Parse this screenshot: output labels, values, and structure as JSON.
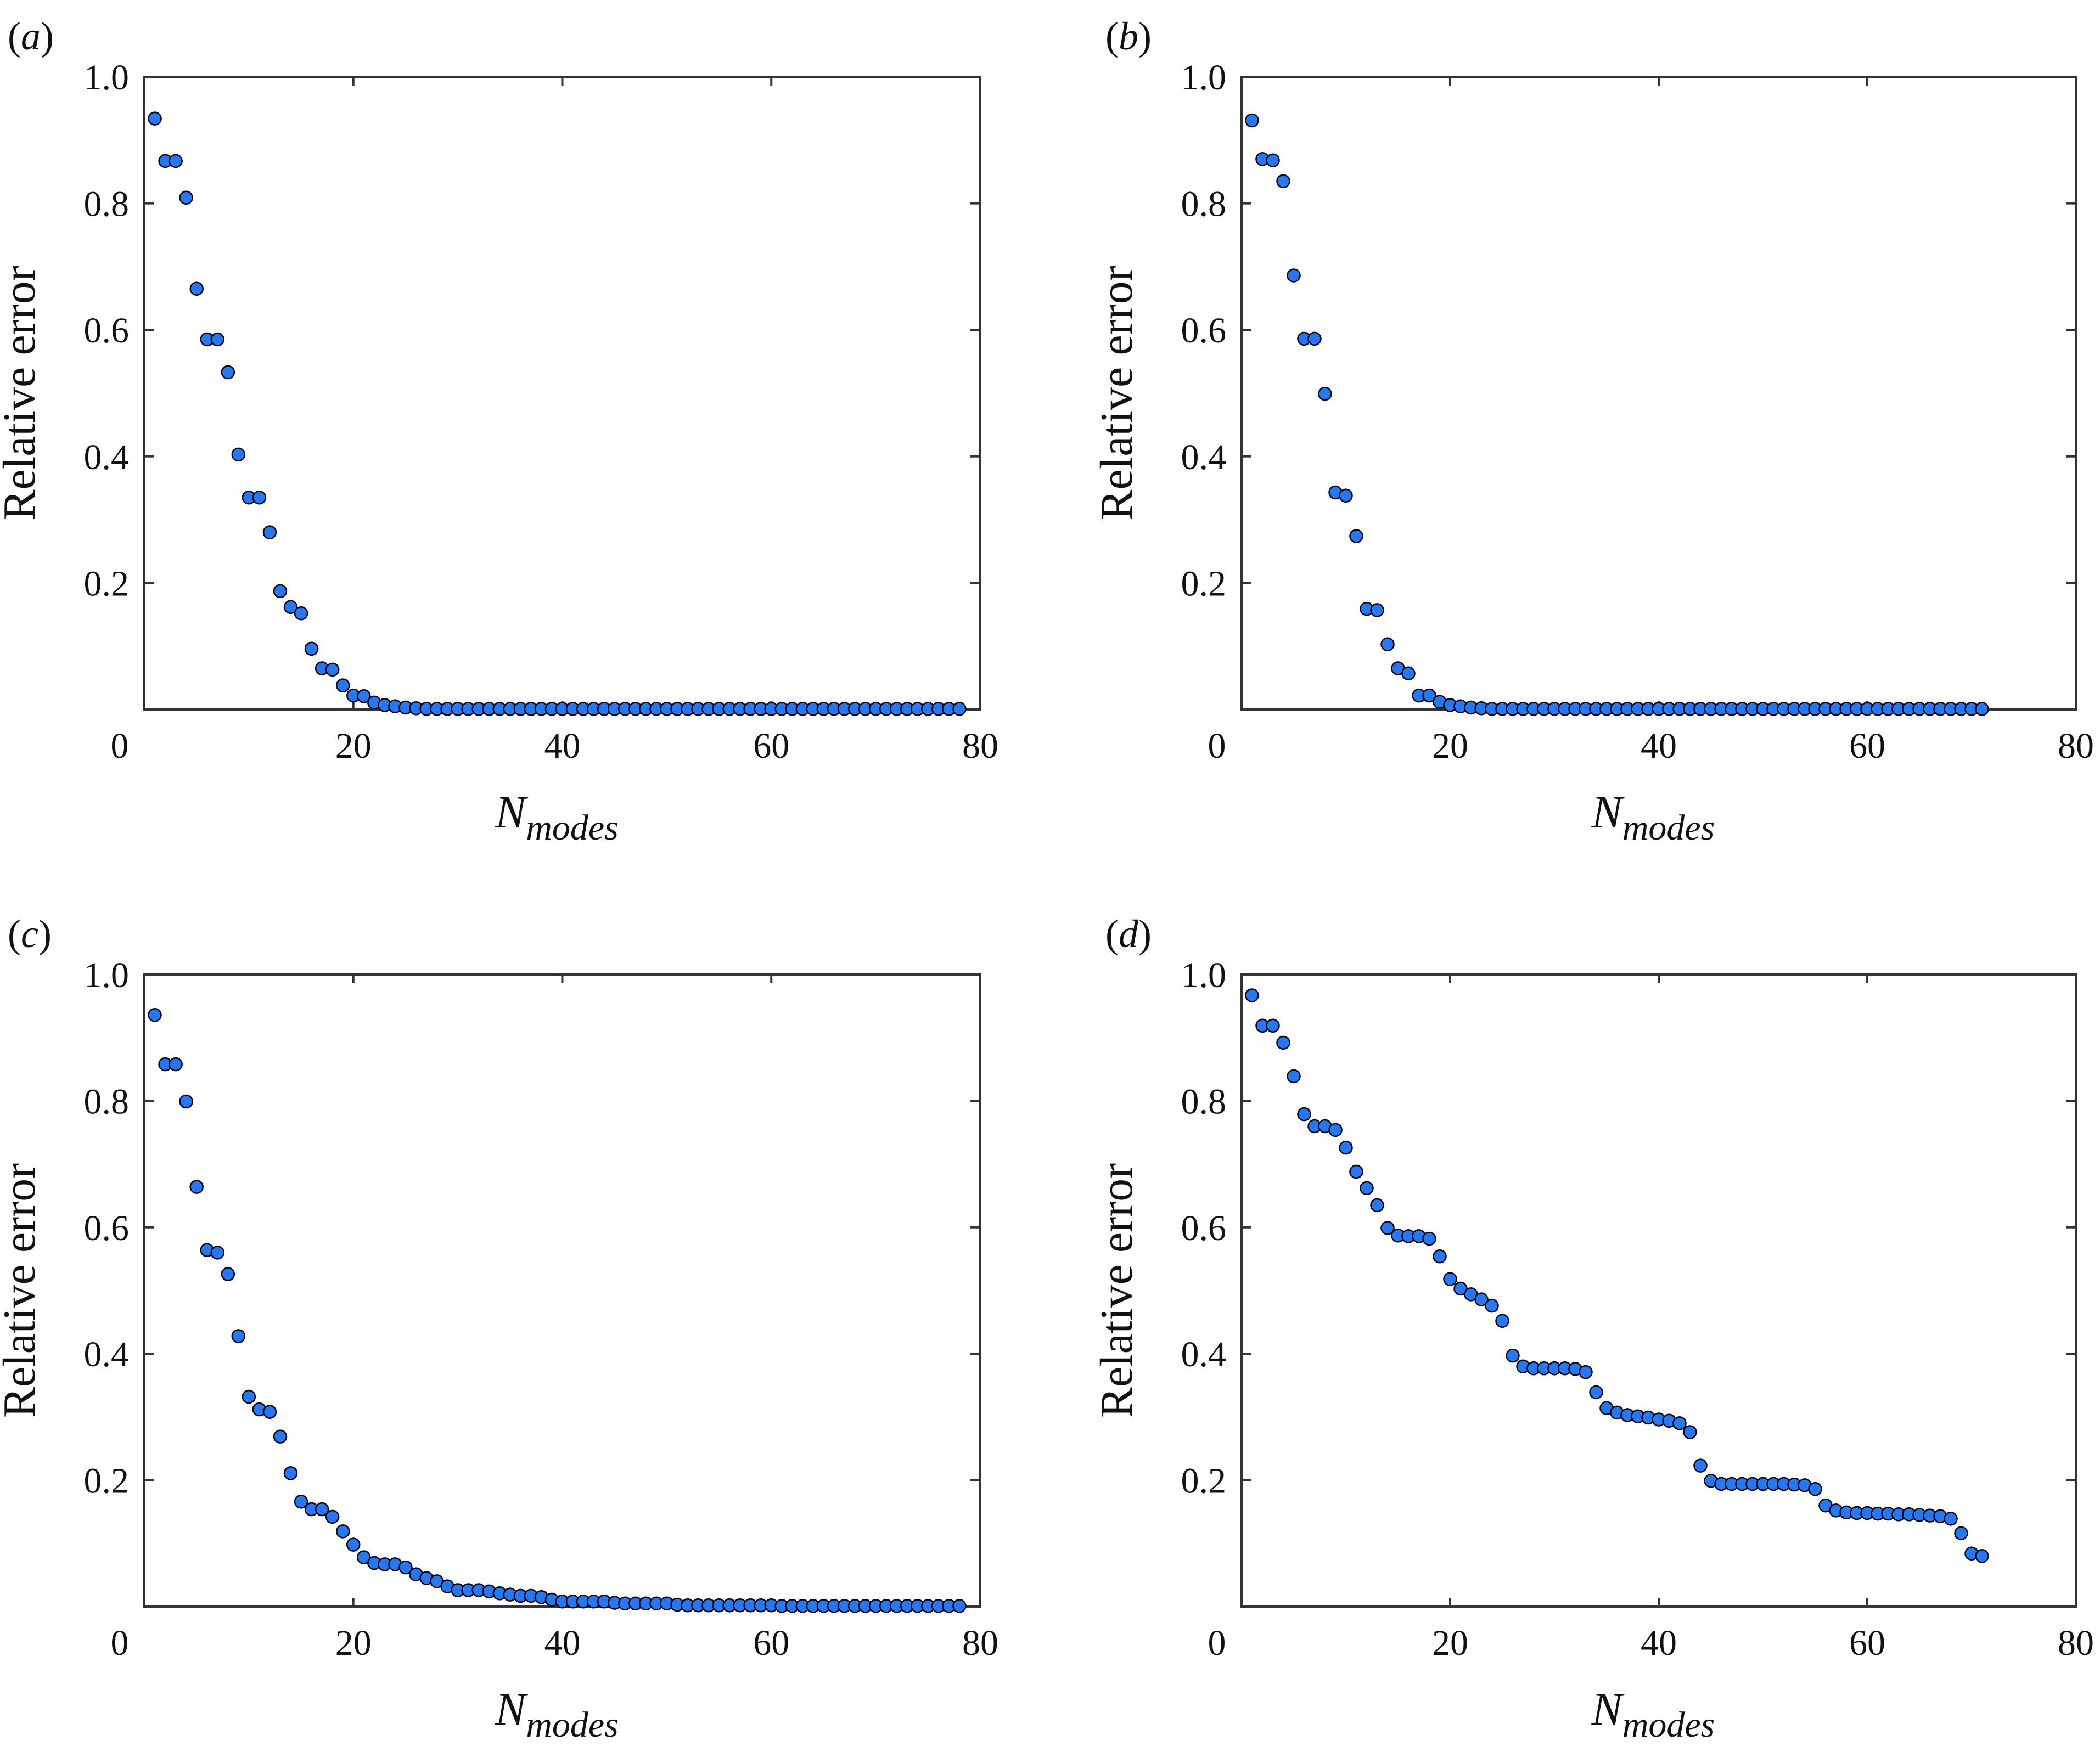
{
  "colors": {
    "marker_fill": "#2478f6",
    "marker_edge": "#000000",
    "axes": "#333333"
  },
  "chart_data": [
    {
      "type": "scatter",
      "panel_label": "(a)",
      "panel_letter": "a",
      "xlabel_main": "N",
      "xlabel_sub": "modes",
      "ylabel": "Relative error",
      "xlim": [
        0,
        80
      ],
      "ylim": [
        0,
        1.0
      ],
      "xticks": [
        "0",
        "20",
        "40",
        "60",
        "80"
      ],
      "yticks": [
        "0.2",
        "0.4",
        "0.6",
        "0.8",
        "1.0"
      ],
      "grid": false,
      "x": [
        1,
        2,
        3,
        4,
        5,
        6,
        7,
        8,
        9,
        10,
        11,
        12,
        13,
        14,
        15,
        16,
        17,
        18,
        19,
        20,
        21,
        22,
        23,
        24,
        25,
        26,
        27,
        28,
        29,
        30,
        31,
        32,
        33,
        34,
        35,
        36,
        37,
        38,
        39,
        40,
        41,
        42,
        43,
        44,
        45,
        46,
        47,
        48,
        49,
        50,
        51,
        52,
        53,
        54,
        55,
        56,
        57,
        58,
        59,
        60,
        61,
        62,
        63,
        64,
        65,
        66,
        67,
        68,
        69,
        70,
        71,
        72,
        73,
        74,
        75,
        76,
        77,
        78
      ],
      "y": [
        0.934,
        0.867,
        0.867,
        0.809,
        0.665,
        0.585,
        0.585,
        0.533,
        0.403,
        0.335,
        0.335,
        0.28,
        0.187,
        0.162,
        0.152,
        0.096,
        0.065,
        0.063,
        0.038,
        0.022,
        0.021,
        0.011,
        0.007,
        0.005,
        0.003,
        0.002,
        0.001,
        0.001,
        0.001,
        0.001,
        0.001,
        0.001,
        0.001,
        0.001,
        0.001,
        0.001,
        0.001,
        0.001,
        0.001,
        0.001,
        0.001,
        0.001,
        0.001,
        0.001,
        0.001,
        0.001,
        0.001,
        0.001,
        0.001,
        0.001,
        0.001,
        0.001,
        0.001,
        0.001,
        0.001,
        0.001,
        0.001,
        0.001,
        0.001,
        0.001,
        0.001,
        0.001,
        0.001,
        0.001,
        0.001,
        0.001,
        0.001,
        0.001,
        0.001,
        0.001,
        0.001,
        0.001,
        0.001,
        0.001,
        0.001,
        0.001,
        0.001,
        0.001
      ]
    },
    {
      "type": "scatter",
      "panel_label": "(b)",
      "panel_letter": "b",
      "xlabel_main": "N",
      "xlabel_sub": "modes",
      "ylabel": "Relative error",
      "xlim": [
        0,
        80
      ],
      "ylim": [
        0,
        1.0
      ],
      "xticks": [
        "0",
        "20",
        "40",
        "60",
        "80"
      ],
      "yticks": [
        "0.2",
        "0.4",
        "0.6",
        "0.8",
        "1.0"
      ],
      "grid": false,
      "x": [
        1,
        2,
        3,
        4,
        5,
        6,
        7,
        8,
        9,
        10,
        11,
        12,
        13,
        14,
        15,
        16,
        17,
        18,
        19,
        20,
        21,
        22,
        23,
        24,
        25,
        26,
        27,
        28,
        29,
        30,
        31,
        32,
        33,
        34,
        35,
        36,
        37,
        38,
        39,
        40,
        41,
        42,
        43,
        44,
        45,
        46,
        47,
        48,
        49,
        50,
        51,
        52,
        53,
        54,
        55,
        56,
        57,
        58,
        59,
        60,
        61,
        62,
        63,
        64,
        65,
        66,
        67,
        68,
        69,
        70,
        71
      ],
      "y": [
        0.931,
        0.87,
        0.868,
        0.835,
        0.686,
        0.586,
        0.586,
        0.499,
        0.343,
        0.338,
        0.274,
        0.159,
        0.157,
        0.103,
        0.065,
        0.057,
        0.022,
        0.022,
        0.012,
        0.007,
        0.005,
        0.003,
        0.002,
        0.001,
        0.001,
        0.001,
        0.001,
        0.001,
        0.001,
        0.001,
        0.001,
        0.001,
        0.001,
        0.001,
        0.001,
        0.001,
        0.001,
        0.001,
        0.001,
        0.001,
        0.001,
        0.001,
        0.001,
        0.001,
        0.001,
        0.001,
        0.001,
        0.001,
        0.001,
        0.001,
        0.001,
        0.001,
        0.001,
        0.001,
        0.001,
        0.001,
        0.001,
        0.001,
        0.001,
        0.001,
        0.001,
        0.001,
        0.001,
        0.001,
        0.001,
        0.001,
        0.001,
        0.001,
        0.001,
        0.001,
        0.001
      ]
    },
    {
      "type": "scatter",
      "panel_label": "(c)",
      "panel_letter": "c",
      "xlabel_main": "N",
      "xlabel_sub": "modes",
      "ylabel": "Relative error",
      "xlim": [
        0,
        80
      ],
      "ylim": [
        0,
        1.0
      ],
      "xticks": [
        "0",
        "20",
        "40",
        "60",
        "80"
      ],
      "yticks": [
        "0.2",
        "0.4",
        "0.6",
        "0.8",
        "1.0"
      ],
      "grid": false,
      "x": [
        1,
        2,
        3,
        4,
        5,
        6,
        7,
        8,
        9,
        10,
        11,
        12,
        13,
        14,
        15,
        16,
        17,
        18,
        19,
        20,
        21,
        22,
        23,
        24,
        25,
        26,
        27,
        28,
        29,
        30,
        31,
        32,
        33,
        34,
        35,
        36,
        37,
        38,
        39,
        40,
        41,
        42,
        43,
        44,
        45,
        46,
        47,
        48,
        49,
        50,
        51,
        52,
        53,
        54,
        55,
        56,
        57,
        58,
        59,
        60,
        61,
        62,
        63,
        64,
        65,
        66,
        67,
        68,
        69,
        70,
        71,
        72,
        73,
        74,
        75,
        76,
        77,
        78
      ],
      "y": [
        0.936,
        0.858,
        0.858,
        0.799,
        0.664,
        0.564,
        0.56,
        0.526,
        0.428,
        0.332,
        0.312,
        0.308,
        0.269,
        0.211,
        0.166,
        0.154,
        0.154,
        0.142,
        0.119,
        0.098,
        0.078,
        0.069,
        0.067,
        0.067,
        0.062,
        0.051,
        0.045,
        0.04,
        0.032,
        0.026,
        0.026,
        0.026,
        0.024,
        0.021,
        0.019,
        0.017,
        0.017,
        0.015,
        0.011,
        0.008,
        0.008,
        0.008,
        0.008,
        0.008,
        0.006,
        0.005,
        0.005,
        0.005,
        0.005,
        0.005,
        0.003,
        0.002,
        0.002,
        0.002,
        0.002,
        0.002,
        0.002,
        0.002,
        0.002,
        0.002,
        0.001,
        0.001,
        0.001,
        0.001,
        0.001,
        0.001,
        0.001,
        0.001,
        0.001,
        0.001,
        0.001,
        0.001,
        0.001,
        0.001,
        0.001,
        0.001,
        0.001,
        0.001
      ]
    },
    {
      "type": "scatter",
      "panel_label": "(d)",
      "panel_letter": "d",
      "xlabel_main": "N",
      "xlabel_sub": "modes",
      "ylabel": "Relative error",
      "xlim": [
        0,
        80
      ],
      "ylim": [
        0,
        1.0
      ],
      "xticks": [
        "0",
        "20",
        "40",
        "60",
        "80"
      ],
      "yticks": [
        "0.2",
        "0.4",
        "0.6",
        "0.8",
        "1.0"
      ],
      "grid": false,
      "x": [
        1,
        2,
        3,
        4,
        5,
        6,
        7,
        8,
        9,
        10,
        11,
        12,
        13,
        14,
        15,
        16,
        17,
        18,
        19,
        20,
        21,
        22,
        23,
        24,
        25,
        26,
        27,
        28,
        29,
        30,
        31,
        32,
        33,
        34,
        35,
        36,
        37,
        38,
        39,
        40,
        41,
        42,
        43,
        44,
        45,
        46,
        47,
        48,
        49,
        50,
        51,
        52,
        53,
        54,
        55,
        56,
        57,
        58,
        59,
        60,
        61,
        62,
        63,
        64,
        65,
        66,
        67,
        68,
        69,
        70,
        71
      ],
      "y": [
        0.967,
        0.919,
        0.919,
        0.892,
        0.839,
        0.779,
        0.76,
        0.76,
        0.754,
        0.726,
        0.688,
        0.662,
        0.635,
        0.599,
        0.587,
        0.586,
        0.586,
        0.582,
        0.554,
        0.518,
        0.503,
        0.494,
        0.486,
        0.476,
        0.452,
        0.397,
        0.38,
        0.377,
        0.377,
        0.377,
        0.377,
        0.376,
        0.371,
        0.339,
        0.314,
        0.307,
        0.303,
        0.301,
        0.299,
        0.296,
        0.294,
        0.29,
        0.276,
        0.223,
        0.199,
        0.194,
        0.194,
        0.194,
        0.194,
        0.194,
        0.194,
        0.194,
        0.193,
        0.192,
        0.186,
        0.16,
        0.152,
        0.149,
        0.148,
        0.148,
        0.147,
        0.147,
        0.146,
        0.146,
        0.145,
        0.144,
        0.143,
        0.139,
        0.116,
        0.084,
        0.08
      ]
    }
  ]
}
